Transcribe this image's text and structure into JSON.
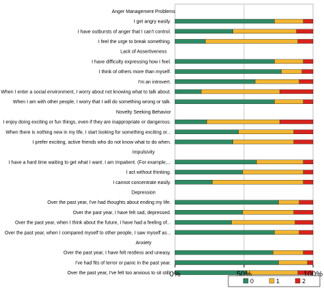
{
  "chart_data": {
    "type": "bar",
    "stacked": true,
    "orientation": "horizontal",
    "percent_axis": true,
    "xlim": [
      0,
      100
    ],
    "x_ticks": [
      "0%",
      "50%",
      "100%"
    ],
    "grid": "vertical line at 50%",
    "legend_position": "bottom-right",
    "series": [
      {
        "name": "0",
        "color": "#2e8b63"
      },
      {
        "name": "1",
        "color": "#f2b531"
      },
      {
        "name": "2",
        "color": "#d8251c"
      }
    ],
    "rows": [
      {
        "label": "Anger Management Problems",
        "header": true
      },
      {
        "label": "I get angry easily.",
        "values": [
          72,
          21,
          7
        ]
      },
      {
        "label": "I have outbursts of anger that I can't control.",
        "values": [
          42,
          46,
          12
        ]
      },
      {
        "label": "I feel the urge to break something.",
        "values": [
          22,
          67,
          11
        ]
      },
      {
        "label": "Lack of Assertiveness",
        "header": true
      },
      {
        "label": "I have difficulty expressing how I feel.",
        "values": [
          72,
          21,
          7
        ]
      },
      {
        "label": "I think of others more than myself.",
        "values": [
          77,
          15,
          8
        ]
      },
      {
        "label": "I'm an introvert.",
        "values": [
          58,
          32,
          10
        ]
      },
      {
        "label": "When I enter a social environment, I worry about not knowing what to talk about.",
        "values": [
          19,
          57,
          24
        ]
      },
      {
        "label": "When I am with other people, I worry that I will do something wrong or talk.",
        "values": [
          72,
          21,
          7
        ]
      },
      {
        "label": "Novelty Seeking Behavior",
        "header": true
      },
      {
        "label": "I enjoy doing exciting or fun things, even if they are inappropriate or dangerous.",
        "values": [
          23,
          53,
          24
        ]
      },
      {
        "label": "When there is nothing new in my life, I start looking for something exciting or...",
        "values": [
          46,
          40,
          14
        ]
      },
      {
        "label": "I prefer exciting, active friends who do not know what to do when.",
        "values": [
          42,
          44,
          14
        ]
      },
      {
        "label": "Impulsivity",
        "header": true
      },
      {
        "label": "I have a hard time waiting to get what I want. I am impatient. (For example,...",
        "values": [
          59,
          34,
          7
        ]
      },
      {
        "label": "I act without thinking.",
        "values": [
          49,
          44,
          7
        ]
      },
      {
        "label": "I cannot concentrate easily.",
        "values": [
          27,
          66,
          7
        ]
      },
      {
        "label": "Depression",
        "header": true
      },
      {
        "label": "Over the past year, I've had thoughts about ending my life.",
        "values": [
          75,
          15,
          10
        ]
      },
      {
        "label": "Over the past year, I have felt sad, depressed.",
        "values": [
          49,
          37,
          14
        ]
      },
      {
        "label": "Over the past year, when I think about the future, I have had a feeling of...",
        "values": [
          41,
          46,
          13
        ]
      },
      {
        "label": "Over the past year, when I compared myself to other people, I saw myself as...",
        "values": [
          72,
          18,
          10
        ]
      },
      {
        "label": "Anxiety",
        "header": true
      },
      {
        "label": "Over the past year, I have felt restless and uneasy.",
        "values": [
          71,
          22,
          7
        ]
      },
      {
        "label": "I've had fits of terror or panic in the past year.",
        "values": [
          75,
          21,
          4
        ]
      },
      {
        "label": "Over the past year, I've felt too anxious to sit still.",
        "values": [
          52,
          37,
          11
        ]
      }
    ]
  }
}
